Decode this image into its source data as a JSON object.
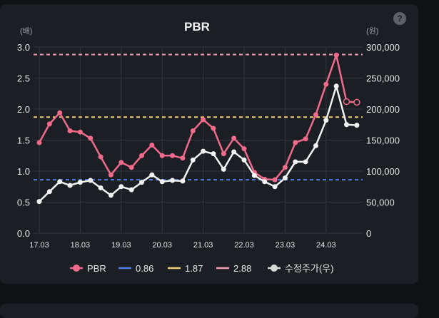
{
  "chart_data": {
    "type": "line",
    "title": "PBR",
    "left_unit": "(배)",
    "right_unit": "(원)",
    "x_labels": [
      "17.03",
      "18.03",
      "19.03",
      "20.03",
      "21.03",
      "22.03",
      "23.03",
      "24.03"
    ],
    "left_axis": {
      "min": 0,
      "max": 3.0,
      "ticks": [
        "0.0",
        "0.5",
        "1.0",
        "1.5",
        "2.0",
        "2.5",
        "3.0"
      ]
    },
    "right_axis": {
      "min": 0,
      "max": 300000,
      "ticks": [
        "0",
        "50,000",
        "100,000",
        "150,000",
        "200,000",
        "250,000",
        "300,000"
      ]
    },
    "x_points_per_label": 4,
    "series": [
      {
        "name": "PBR",
        "axis": "left",
        "color": "#f06b8b",
        "values": [
          1.46,
          1.76,
          1.94,
          1.65,
          1.63,
          1.53,
          1.23,
          0.94,
          1.14,
          1.06,
          1.25,
          1.42,
          1.25,
          1.25,
          1.21,
          1.65,
          1.83,
          1.69,
          1.28,
          1.53,
          1.36,
          0.98,
          0.87,
          0.86,
          1.06,
          1.46,
          1.52,
          1.91,
          2.4,
          2.87,
          2.12,
          2.11
        ],
        "open_last_points": 2
      },
      {
        "name": "수정주가(우)",
        "axis": "right",
        "color": "#f2f2f2",
        "values": [
          51000,
          67000,
          83000,
          77000,
          82000,
          85000,
          73000,
          61000,
          75000,
          70000,
          82000,
          94000,
          83000,
          85000,
          84000,
          118000,
          132000,
          128000,
          103000,
          131000,
          118000,
          93000,
          83000,
          75000,
          89000,
          115000,
          115000,
          141000,
          182000,
          237000,
          175000,
          174000
        ]
      }
    ],
    "reference_lines": [
      {
        "name": "0.86",
        "value": 0.86,
        "color": "#4f7fe6"
      },
      {
        "name": "1.87",
        "value": 1.87,
        "color": "#f0cf73"
      },
      {
        "name": "2.88",
        "value": 2.88,
        "color": "#f29db6"
      }
    ],
    "legend": {
      "placement": "bottom",
      "items": [
        {
          "label": "PBR",
          "color": "#f06b8b",
          "kind": "marker"
        },
        {
          "label": "0.86",
          "color": "#4f7fe6",
          "kind": "line"
        },
        {
          "label": "1.87",
          "color": "#f0cf73",
          "kind": "line"
        },
        {
          "label": "2.88",
          "color": "#f29db6",
          "kind": "line"
        },
        {
          "label": "수정주가(우)",
          "color": "#d9d9d9",
          "kind": "marker"
        }
      ]
    },
    "grid": true
  },
  "help": {
    "label": "?"
  }
}
